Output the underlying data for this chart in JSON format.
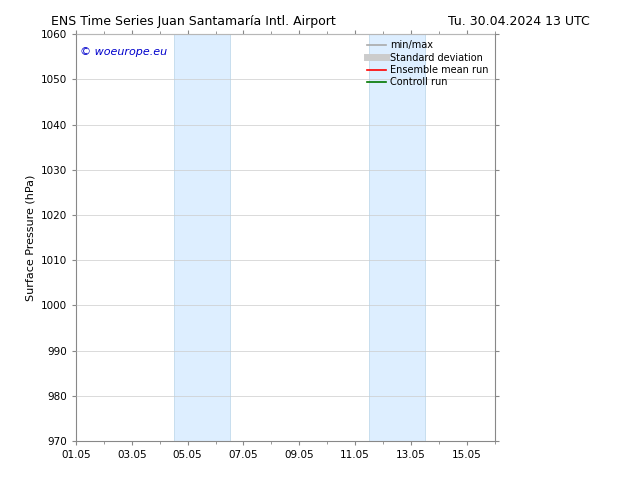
{
  "title_left": "ENS Time Series Juan Santamaría Intl. Airport",
  "title_right": "Tu. 30.04.2024 13 UTC",
  "ylabel": "Surface Pressure (hPa)",
  "ylim": [
    970,
    1060
  ],
  "yticks": [
    970,
    980,
    990,
    1000,
    1010,
    1020,
    1030,
    1040,
    1050,
    1060
  ],
  "xtick_labels": [
    "01.05",
    "03.05",
    "05.05",
    "07.05",
    "09.05",
    "11.05",
    "13.05",
    "15.05"
  ],
  "xtick_positions": [
    0,
    2,
    4,
    6,
    8,
    10,
    12,
    14
  ],
  "xlim": [
    0,
    15
  ],
  "shaded_bands": [
    {
      "start": 3.5,
      "end": 5.5
    },
    {
      "start": 10.5,
      "end": 12.5
    }
  ],
  "shaded_color": "#ddeeff",
  "shaded_edge_color": "#b8d4e8",
  "background_color": "#ffffff",
  "grid_color": "#cccccc",
  "watermark_text": "© woeurope.eu",
  "watermark_color": "#0000cc",
  "legend_items": [
    {
      "label": "min/max",
      "color": "#aaaaaa",
      "lw": 1.2,
      "style": "solid"
    },
    {
      "label": "Standard deviation",
      "color": "#cccccc",
      "lw": 5,
      "style": "solid"
    },
    {
      "label": "Ensemble mean run",
      "color": "#ff0000",
      "lw": 1.2,
      "style": "solid"
    },
    {
      "label": "Controll run",
      "color": "#007700",
      "lw": 1.2,
      "style": "solid"
    }
  ],
  "title_fontsize": 9,
  "axis_label_fontsize": 8,
  "tick_fontsize": 7.5,
  "legend_fontsize": 7,
  "watermark_fontsize": 8
}
